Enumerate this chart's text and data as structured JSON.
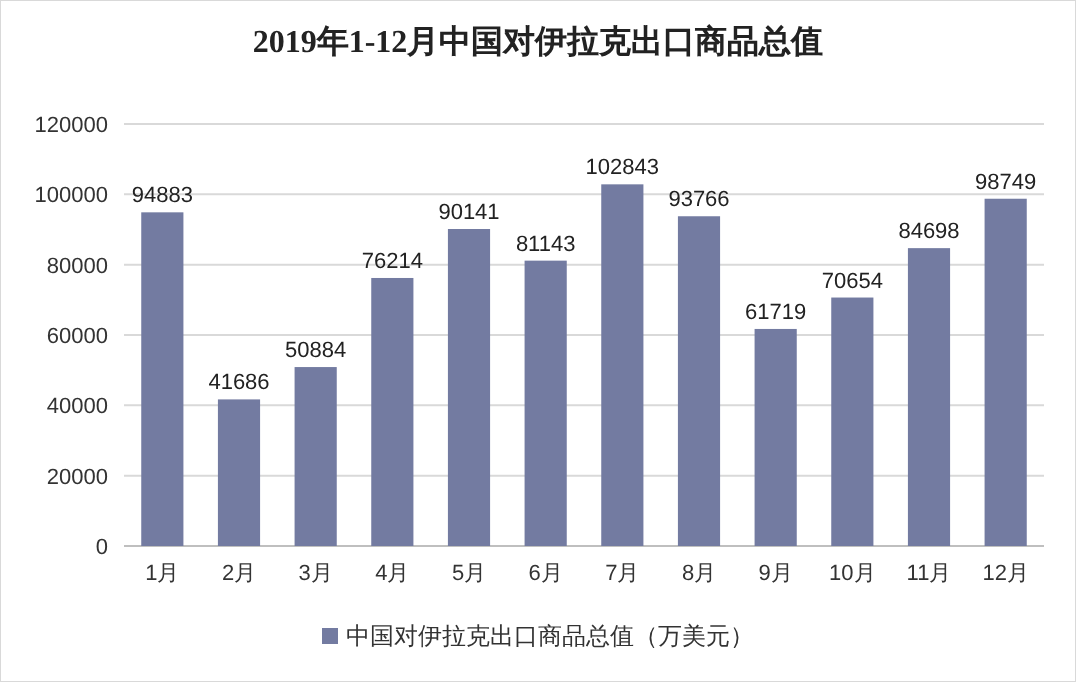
{
  "chart_data": {
    "type": "bar",
    "title": "2019年1-12月中国对伊拉克出口商品总值",
    "categories": [
      "1月",
      "2月",
      "3月",
      "4月",
      "5月",
      "6月",
      "7月",
      "8月",
      "9月",
      "10月",
      "11月",
      "12月"
    ],
    "series": [
      {
        "name": "中国对伊拉克出口商品总值（万美元）",
        "color": "#737ba1",
        "values": [
          94883,
          41686,
          50884,
          76214,
          90141,
          81143,
          102843,
          93766,
          61719,
          70654,
          84698,
          98749
        ]
      }
    ],
    "ylim": [
      0,
      120000
    ],
    "yticks": [
      0,
      20000,
      40000,
      60000,
      80000,
      100000,
      120000
    ],
    "grid": "y",
    "legend": "bottom",
    "data_labels": true
  }
}
